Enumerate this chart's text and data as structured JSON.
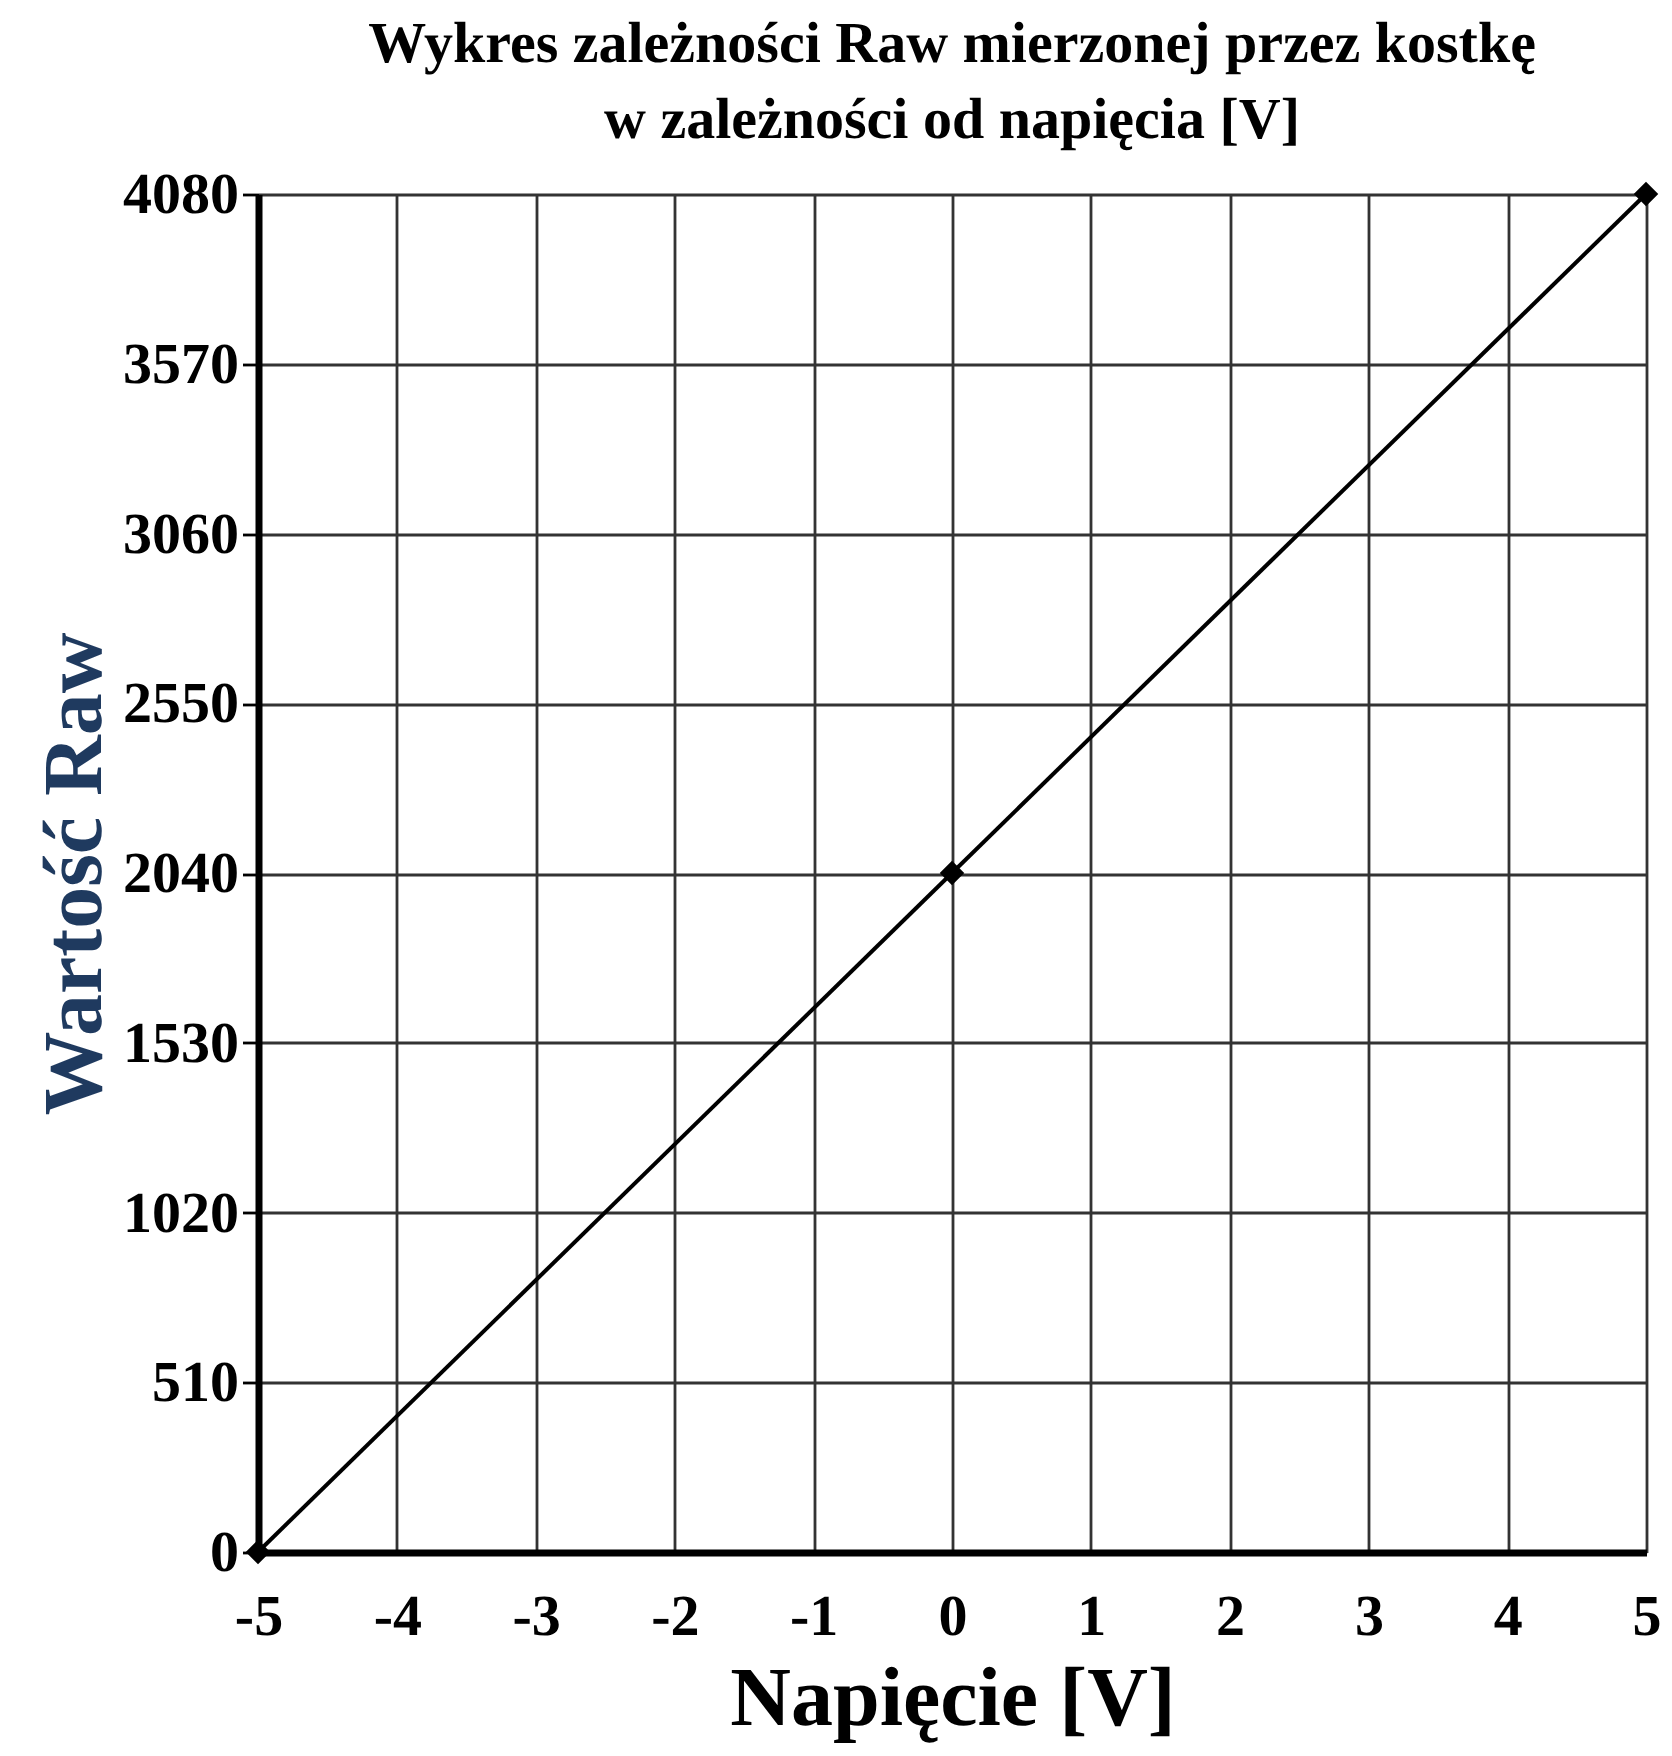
{
  "chart_data": {
    "type": "line",
    "title": "Wykres zależności Raw mierzonej przez kostkę\nw zależności od napięcia [V]",
    "xlabel": "Napięcie [V]",
    "ylabel": "Wartość Raw",
    "x": [
      -5,
      0,
      5
    ],
    "series": [
      {
        "color": "#000000",
        "values": [
          0,
          2040,
          4080
        ]
      }
    ],
    "xlim": [
      -5,
      5
    ],
    "xticks": [
      -5,
      -4,
      -3,
      -2,
      -1,
      0,
      1,
      2,
      3,
      4,
      5
    ],
    "ylim": [
      0,
      4080
    ],
    "yticks": [
      0,
      510,
      1020,
      1530,
      2040,
      2550,
      3060,
      3570,
      4080
    ],
    "grid": true,
    "marker": "diamond",
    "line_style": "solid"
  }
}
